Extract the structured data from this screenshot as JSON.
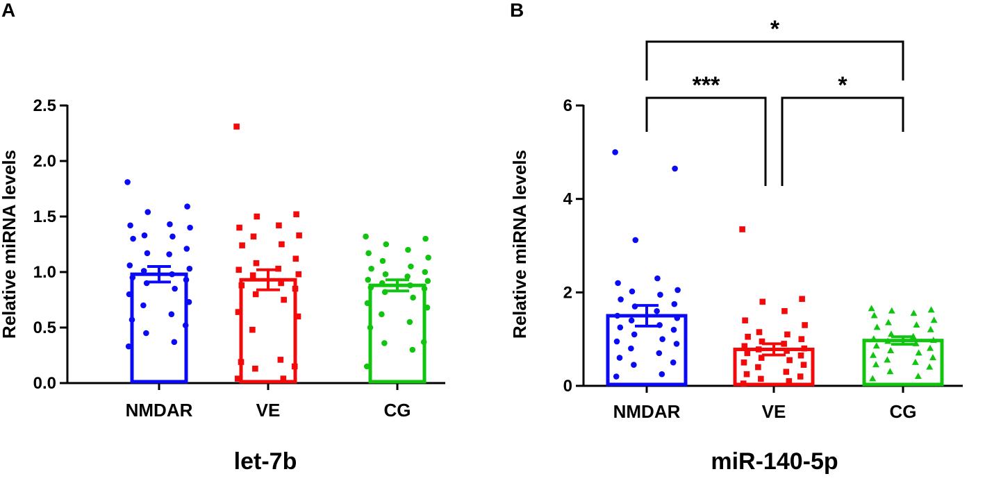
{
  "colors": {
    "NMDAR": "#0a0af5",
    "VE": "#f20a0a",
    "CG": "#10c410",
    "axis": "#000000"
  },
  "chart_data": [
    {
      "panel": "A",
      "type": "bar",
      "title": "let-7b",
      "ylabel": "Relative miRNA levels",
      "xlabel": "",
      "ylim": [
        0,
        2.5
      ],
      "yticks": [
        0,
        0.5,
        1,
        1.5,
        2,
        2.5
      ],
      "ytick_labels": [
        "0.0",
        "0.5",
        "1.0",
        "1.5",
        "2.0",
        "2.5"
      ],
      "categories": [
        "NMDAR",
        "VE",
        "CG"
      ],
      "values": [
        0.98,
        0.93,
        0.88
      ],
      "sem": [
        0.07,
        0.09,
        0.05
      ],
      "markers": [
        "circle",
        "square",
        "circle"
      ],
      "points": [
        [
          1.81,
          1.59,
          1.54,
          1.43,
          1.42,
          1.4,
          1.33,
          1.32,
          1.3,
          1.21,
          1.17,
          1.16,
          1.06,
          1.03,
          1.01,
          0.98,
          0.95,
          0.93,
          0.9,
          0.85,
          0.8,
          0.73,
          0.7,
          0.62,
          0.57,
          0.52,
          0.45,
          0.37,
          0.33
        ],
        [
          2.31,
          1.52,
          1.5,
          1.42,
          1.4,
          1.33,
          1.32,
          1.25,
          1.24,
          1.12,
          1.08,
          1.03,
          1.02,
          0.98,
          0.97,
          0.9,
          0.88,
          0.85,
          0.8,
          0.75,
          0.64,
          0.6,
          0.48,
          0.21,
          0.19,
          0.15,
          0.13,
          0.04,
          0.04
        ],
        [
          1.32,
          1.3,
          1.25,
          1.2,
          1.17,
          1.13,
          1.1,
          1.05,
          1.03,
          1.0,
          0.98,
          0.96,
          0.93,
          0.92,
          0.9,
          0.88,
          0.86,
          0.85,
          0.82,
          0.77,
          0.72,
          0.68,
          0.62,
          0.55,
          0.5,
          0.37,
          0.36,
          0.3,
          0.15
        ]
      ],
      "significance": []
    },
    {
      "panel": "B",
      "type": "bar",
      "title": "miR-140-5p",
      "ylabel": "Relative miRNA levels",
      "xlabel": "",
      "ylim": [
        0,
        6
      ],
      "yticks": [
        0,
        2,
        4,
        6
      ],
      "ytick_labels": [
        "0",
        "2",
        "4",
        "6"
      ],
      "categories": [
        "NMDAR",
        "VE",
        "CG"
      ],
      "values": [
        1.5,
        0.78,
        0.97
      ],
      "sem": [
        0.22,
        0.12,
        0.08
      ],
      "markers": [
        "circle",
        "square",
        "triangle"
      ],
      "points": [
        [
          5.0,
          4.65,
          3.12,
          2.3,
          2.2,
          2.05,
          2.02,
          1.95,
          1.85,
          1.75,
          1.7,
          1.6,
          1.5,
          1.45,
          1.4,
          1.3,
          1.25,
          1.2,
          1.1,
          1.0,
          0.95,
          0.9,
          0.8,
          0.7,
          0.6,
          0.5,
          0.45,
          0.25,
          0.2
        ],
        [
          3.35,
          1.86,
          1.8,
          1.6,
          1.4,
          1.3,
          1.15,
          1.1,
          1.05,
          1.0,
          0.95,
          0.9,
          0.85,
          0.8,
          0.78,
          0.75,
          0.7,
          0.65,
          0.6,
          0.55,
          0.5,
          0.45,
          0.4,
          0.3,
          0.25,
          0.2,
          0.15,
          0.1,
          0.05
        ],
        [
          1.65,
          1.62,
          1.6,
          1.55,
          1.5,
          1.4,
          1.35,
          1.3,
          1.25,
          1.2,
          1.1,
          1.05,
          1.0,
          0.97,
          0.95,
          0.9,
          0.85,
          0.8,
          0.75,
          0.7,
          0.65,
          0.6,
          0.55,
          0.5,
          0.45,
          0.4,
          0.3,
          0.2,
          0.15
        ]
      ],
      "significance": [
        {
          "from": 0,
          "to": 2,
          "label": "*",
          "level": 2
        },
        {
          "from": 0,
          "to": 1,
          "label": "***",
          "level": 1
        },
        {
          "from": 1,
          "to": 2,
          "label": "*",
          "level": 1
        }
      ]
    }
  ]
}
